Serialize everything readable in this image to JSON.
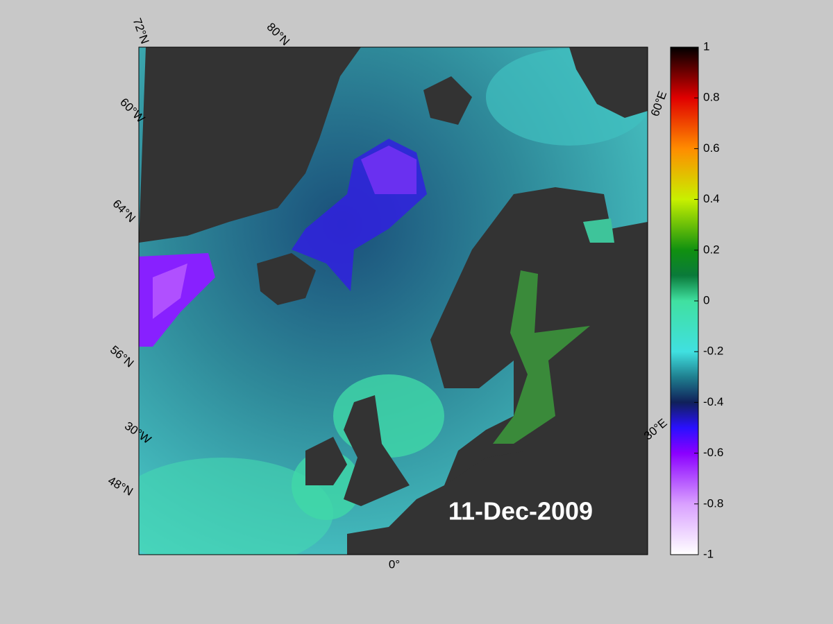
{
  "map": {
    "date_label": "11-Dec-2009",
    "graticule_labels": [
      "72°N",
      "80°N",
      "60°W",
      "64°N",
      "56°N",
      "30°W",
      "48°N",
      "0°",
      "60°E",
      "30°E"
    ],
    "colorbar": {
      "lim": [
        -1,
        1
      ],
      "ticks": [
        -1,
        -0.8,
        -0.6,
        -0.4,
        -0.2,
        0,
        0.2,
        0.4,
        0.6,
        0.8,
        1
      ]
    }
  }
}
